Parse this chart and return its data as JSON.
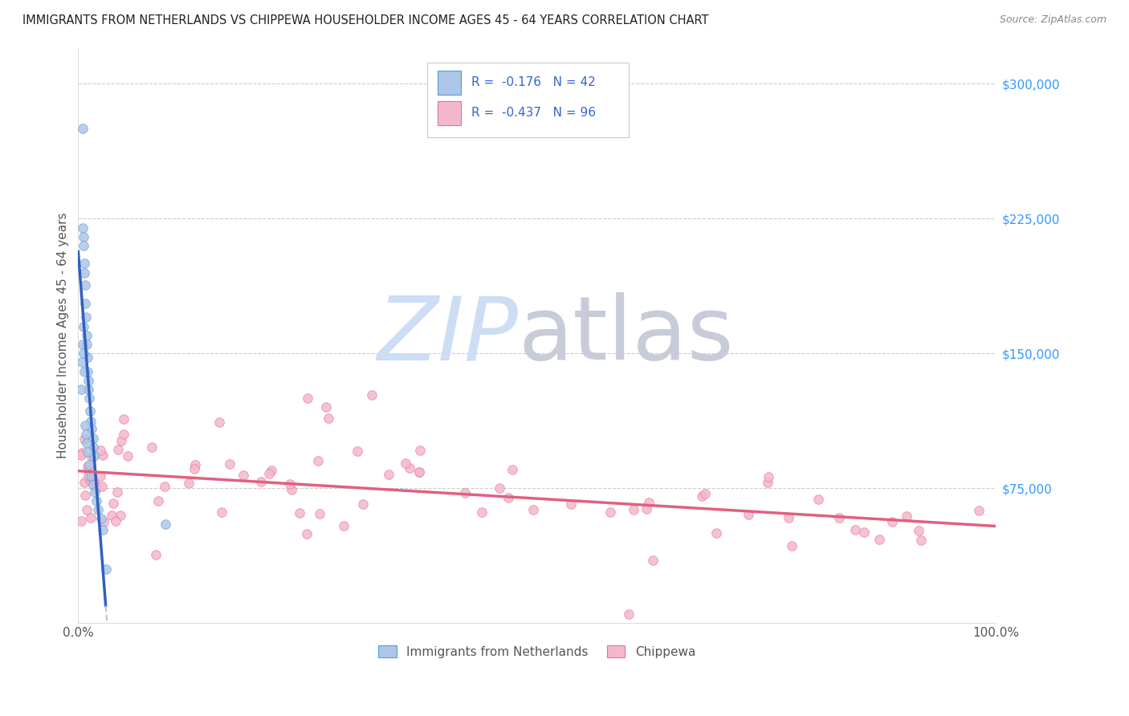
{
  "title": "IMMIGRANTS FROM NETHERLANDS VS CHIPPEWA HOUSEHOLDER INCOME AGES 45 - 64 YEARS CORRELATION CHART",
  "source": "Source: ZipAtlas.com",
  "ylabel": "Householder Income Ages 45 - 64 years",
  "ytick_labels": [
    "$75,000",
    "$150,000",
    "$225,000",
    "$300,000"
  ],
  "ytick_values": [
    75000,
    150000,
    225000,
    300000
  ],
  "legend_label1": "Immigrants from Netherlands",
  "legend_label2": "Chippewa",
  "R1": -0.176,
  "N1": 42,
  "R2": -0.437,
  "N2": 96,
  "color1_fill": "#aec6e8",
  "color1_edge": "#5b9bd5",
  "color2_fill": "#f4b8cc",
  "color2_edge": "#e87095",
  "line1_color": "#3060c0",
  "line2_color": "#e06080",
  "dashed_color": "#b8c4d4",
  "watermark_zip_color": "#ccddf5",
  "watermark_atlas_color": "#c8ccd8",
  "xmin": 0.0,
  "xmax": 1.0,
  "ymin": 0,
  "ymax": 320000,
  "grid_color": "#cccccc",
  "title_color": "#222222",
  "source_color": "#888888",
  "ylabel_color": "#555555",
  "xtick_color": "#555555"
}
